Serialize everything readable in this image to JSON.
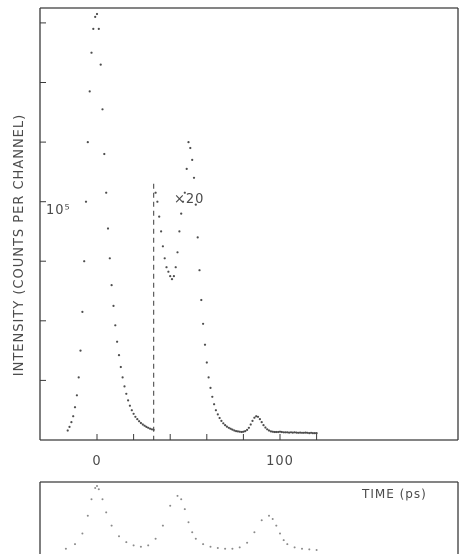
{
  "chart_data": [
    {
      "type": "scatter",
      "title": "",
      "xlabel": "TIME (ps)",
      "ylabel": "INTENSITY (COUNTS PER CHANNEL)",
      "x_ticks": [
        "0",
        "100"
      ],
      "y_tick_label": "10⁵",
      "annotation": "×20",
      "xlim": [
        -17,
        120
      ],
      "ylim": [
        0,
        145000
      ],
      "scale_change_at_x": 31,
      "series": [
        {
          "values_x": [
            -16,
            -15,
            -14,
            -13,
            -12,
            -11,
            -10,
            -9,
            -8,
            -7,
            -6,
            -5,
            -4,
            -3,
            -2,
            -1,
            0,
            1,
            2,
            3,
            4,
            5,
            6,
            7,
            8,
            9,
            10,
            11,
            12,
            13,
            14,
            15,
            16,
            17,
            18,
            19,
            20,
            21,
            22,
            23,
            24,
            25,
            26,
            27,
            28,
            29,
            30,
            31
          ],
          "values_y": [
            3200,
            4400,
            6000,
            8000,
            11000,
            15000,
            21000,
            30000,
            43000,
            60000,
            80000,
            100000,
            117000,
            130000,
            138000,
            142000,
            143000,
            138000,
            126000,
            111000,
            96000,
            83000,
            71000,
            61000,
            52000,
            45000,
            38500,
            33000,
            28500,
            24500,
            21000,
            18000,
            15500,
            13300,
            11500,
            10000,
            8800,
            7800,
            7000,
            6300,
            5700,
            5200,
            4800,
            4400,
            4100,
            3800,
            3600,
            3400
          ]
        },
        {
          "scale": "x20",
          "values_x": [
            32,
            33,
            34,
            35,
            36,
            37,
            38,
            39,
            40,
            41,
            42,
            43,
            44,
            45,
            46,
            47,
            48,
            49,
            50,
            51,
            52,
            53,
            54,
            55,
            56,
            57,
            58,
            59,
            60,
            61,
            62,
            63,
            64,
            65,
            66,
            67,
            68,
            69,
            70,
            71,
            72,
            73,
            74,
            75,
            76,
            77,
            78,
            79,
            80,
            81,
            82,
            83,
            84,
            85,
            86,
            87,
            88,
            89,
            90,
            91,
            92,
            93,
            94,
            95,
            96,
            97,
            98,
            99,
            100,
            101,
            102,
            103,
            104,
            105,
            106,
            107,
            108,
            109,
            110,
            111,
            112,
            113,
            114,
            115,
            116,
            117,
            118,
            119,
            120
          ],
          "values_y": [
            83000,
            80000,
            75000,
            70000,
            65000,
            61000,
            58000,
            56500,
            55000,
            54000,
            55000,
            58000,
            63000,
            70000,
            76000,
            80000,
            83000,
            91000,
            100000,
            98000,
            94000,
            88000,
            79000,
            68000,
            57000,
            47000,
            39000,
            32000,
            26000,
            21000,
            17500,
            14500,
            12000,
            10000,
            8600,
            7400,
            6400,
            5600,
            5000,
            4500,
            4100,
            3800,
            3500,
            3200,
            3000,
            2900,
            2800,
            2700,
            2800,
            3000,
            3400,
            4100,
            5200,
            6400,
            7500,
            8000,
            7800,
            7000,
            6000,
            5000,
            4200,
            3600,
            3200,
            2900,
            2800,
            2700,
            2700,
            2700,
            2800,
            2700,
            2600,
            2600,
            2600,
            2500,
            2600,
            2500,
            2600,
            2500,
            2400,
            2500,
            2400,
            2400,
            2500,
            2400,
            2300,
            2400,
            2300,
            2300,
            2300
          ]
        }
      ]
    },
    {
      "type": "scatter",
      "title": "",
      "xlabel": "",
      "ylabel": "",
      "series": [
        {
          "values_x": [
            -17,
            -12,
            -8,
            -5,
            -3,
            -1,
            0,
            1,
            3,
            5,
            8,
            12,
            16,
            20,
            24,
            28,
            32,
            36,
            40,
            44,
            46,
            48,
            50,
            52,
            54,
            58,
            62,
            66,
            70,
            74,
            78,
            82,
            86,
            90,
            94,
            96,
            98,
            100,
            102,
            104,
            108,
            112,
            116,
            120
          ],
          "values_y": [
            0.05,
            0.12,
            0.28,
            0.55,
            0.8,
            0.97,
            1.0,
            0.95,
            0.8,
            0.6,
            0.4,
            0.24,
            0.15,
            0.1,
            0.08,
            0.1,
            0.2,
            0.4,
            0.7,
            0.85,
            0.8,
            0.65,
            0.45,
            0.3,
            0.2,
            0.12,
            0.08,
            0.06,
            0.05,
            0.05,
            0.07,
            0.14,
            0.3,
            0.48,
            0.55,
            0.5,
            0.4,
            0.28,
            0.18,
            0.12,
            0.07,
            0.05,
            0.04,
            0.03
          ]
        }
      ]
    }
  ]
}
